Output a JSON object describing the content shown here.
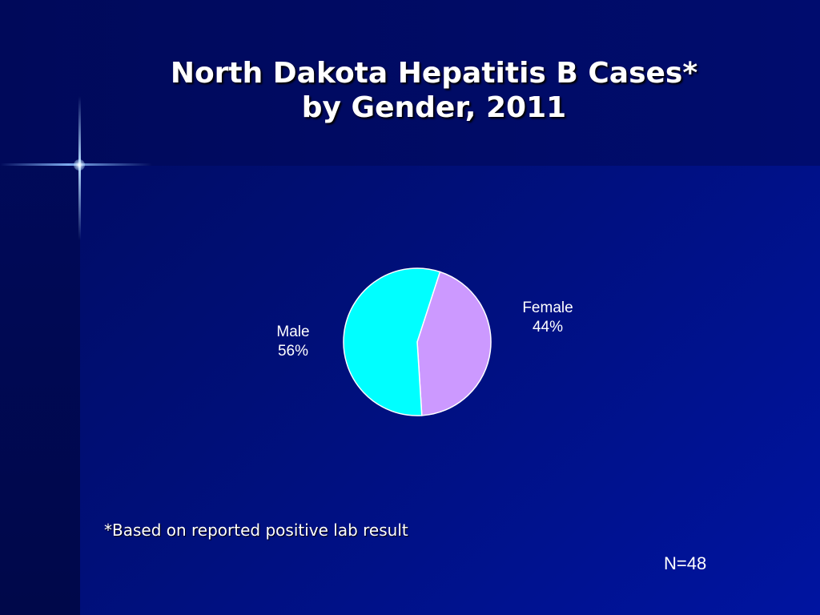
{
  "slide": {
    "title_line1": "North Dakota Hepatitis B Cases*",
    "title_line2": "by Gender, 2011",
    "footnote": "*Based on reported positive lab result",
    "n_label": "N=48"
  },
  "chart_data": {
    "type": "pie",
    "title": "North Dakota Hepatitis B Cases* by Gender, 2011",
    "slices": [
      {
        "label": "Female",
        "value": 44,
        "value_label": "44%",
        "color": "#cc99ff"
      },
      {
        "label": "Male",
        "value": 56,
        "value_label": "56%",
        "color": "#00ffff"
      }
    ],
    "border_color": "#ffffff"
  }
}
